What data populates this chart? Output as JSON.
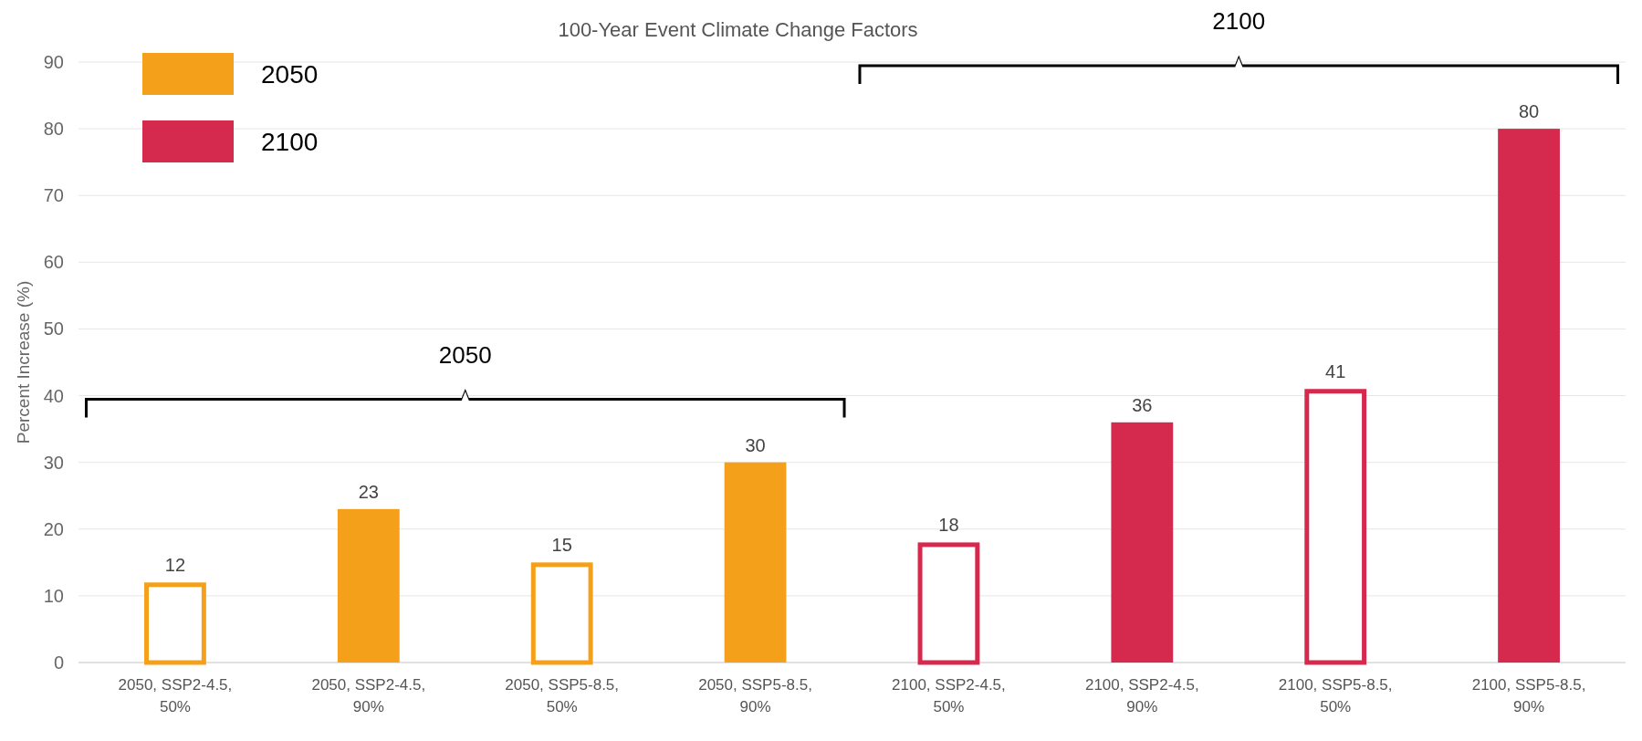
{
  "chart_data": {
    "type": "bar",
    "title": "100-Year Event Climate Change Factors",
    "ylabel": "Percent Increase (%)",
    "categories": [
      "2050, SSP2-4.5, 50%",
      "2050, SSP2-4.5, 90%",
      "2050, SSP5-8.5, 50%",
      "2050, SSP5-8.5, 90%",
      "2100, SSP2-4.5, 50%",
      "2100, SSP2-4.5, 90%",
      "2100, SSP5-8.5, 50%",
      "2100, SSP5-8.5, 90%"
    ],
    "series": [
      {
        "name": "2050",
        "color": "#f5a01a",
        "values": [
          12,
          23,
          15,
          30,
          null,
          null,
          null,
          null
        ],
        "colors": [
          "#ffffff",
          "#f5a01a",
          "#ffffff",
          "#f5a01a",
          null,
          null,
          null,
          null
        ]
      },
      {
        "name": "2100",
        "color": "#d6294e",
        "values": [
          null,
          null,
          null,
          null,
          18,
          36,
          41,
          80
        ],
        "colors": [
          null,
          null,
          null,
          null,
          "#ffffff",
          "#d6294e",
          "#ffffff",
          "#d6294e"
        ]
      }
    ],
    "ylim": [
      0,
      90
    ],
    "yticks": [
      0,
      10,
      20,
      30,
      40,
      50,
      60,
      70,
      80,
      90
    ],
    "grid": "y",
    "legend": "top left",
    "data_labels": true,
    "annotations": [
      "2050",
      "2100"
    ]
  }
}
